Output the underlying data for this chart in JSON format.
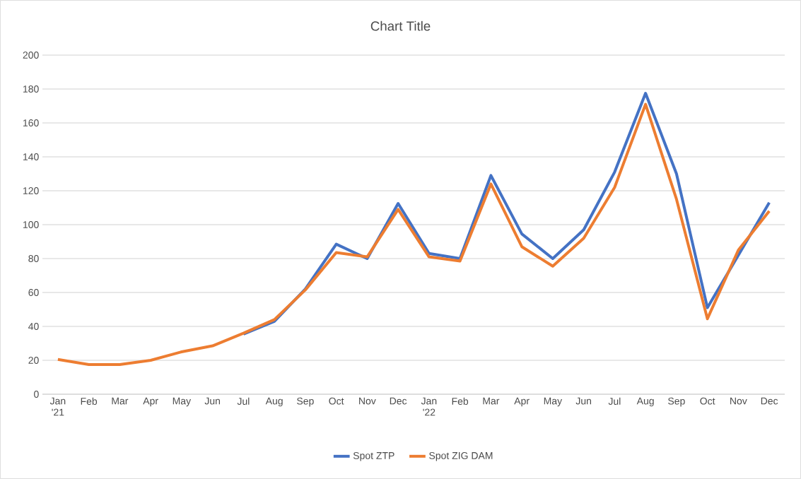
{
  "chart_data": {
    "type": "line",
    "title": "Chart Title",
    "categories": [
      "Jan '21",
      "Feb",
      "Mar",
      "Apr",
      "May",
      "Jun",
      "Jul",
      "Aug",
      "Sep",
      "Oct",
      "Nov",
      "Dec",
      "Jan '22",
      "Feb",
      "Mar",
      "Apr",
      "May",
      "Jun",
      "Jul",
      "Aug",
      "Sep",
      "Oct",
      "Nov",
      "Dec"
    ],
    "series": [
      {
        "name": "Spot ZTP",
        "color": "#4472c4",
        "values": [
          null,
          null,
          null,
          null,
          null,
          null,
          35.5,
          43,
          62,
          88.5,
          80,
          112.5,
          83,
          80,
          129,
          94.5,
          80,
          97,
          131,
          177.5,
          130,
          51,
          82,
          113
        ]
      },
      {
        "name": "Spot ZIG DAM",
        "color": "#ed7d31",
        "values": [
          20.5,
          17.5,
          17.5,
          20,
          25,
          28.5,
          36,
          44,
          61.5,
          83.5,
          81,
          109,
          81,
          78.5,
          124,
          87,
          75.5,
          92,
          122,
          171,
          115,
          44.5,
          85,
          108
        ]
      }
    ],
    "ylim": [
      0,
      200
    ],
    "yticks": [
      0,
      20,
      40,
      60,
      80,
      100,
      120,
      140,
      160,
      180,
      200
    ],
    "grid": "y",
    "legend": "bottom",
    "marker": "none",
    "line_style": "solid"
  }
}
